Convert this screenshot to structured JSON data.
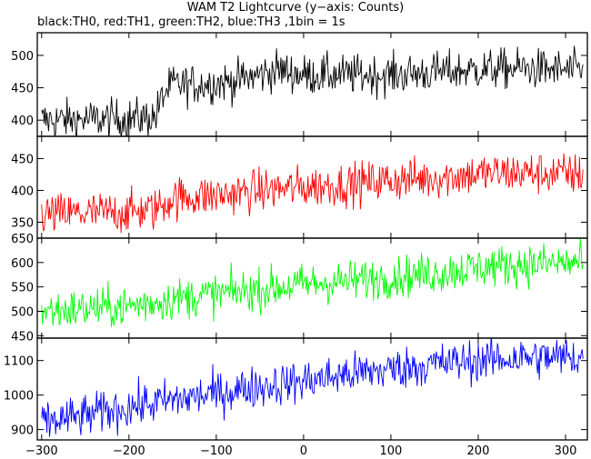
{
  "title": "WAM T2 Lightcurve (y−axis: Counts)",
  "subtitle": "black:TH0, red:TH1, green:TH2, blue:TH3 ,1bin = 1s",
  "chart_data": {
    "type": "line",
    "xlim": [
      -305,
      325
    ],
    "x_ticks": [
      -300,
      -200,
      -100,
      0,
      100,
      200,
      300
    ],
    "x_tick_labels": [
      "−300",
      "−200",
      "−100",
      "0",
      "100",
      "200",
      "300"
    ],
    "x_step": 1,
    "panels": [
      {
        "series": "TH0",
        "color": "#000000",
        "ylim": [
          375,
          535
        ],
        "y_ticks": [
          400,
          450,
          500
        ],
        "x": [
          -300,
          -200,
          -170,
          -160,
          -150,
          -120,
          -80,
          -50,
          -30,
          0,
          50,
          100,
          150,
          200,
          250,
          320
        ],
        "y": [
          400,
          402,
          405,
          440,
          455,
          455,
          460,
          470,
          478,
          470,
          470,
          470,
          474,
          478,
          480,
          476
        ],
        "noise": 28
      },
      {
        "series": "TH1",
        "color": "#ff0000",
        "ylim": [
          325,
          485
        ],
        "y_ticks": [
          350,
          400,
          450
        ],
        "x": [
          -300,
          -200,
          -170,
          -150,
          -100,
          -50,
          0,
          50,
          100,
          150,
          200,
          250,
          320
        ],
        "y": [
          362,
          366,
          370,
          388,
          392,
          400,
          405,
          410,
          416,
          420,
          426,
          428,
          425
        ],
        "noise": 30
      },
      {
        "series": "TH2",
        "color": "#00ff00",
        "ylim": [
          445,
          650
        ],
        "y_ticks": [
          450,
          500,
          550,
          600,
          650
        ],
        "x": [
          -300,
          -200,
          -150,
          -100,
          -50,
          0,
          50,
          100,
          150,
          200,
          250,
          320
        ],
        "y": [
          500,
          510,
          525,
          535,
          545,
          555,
          562,
          570,
          578,
          590,
          596,
          600
        ],
        "noise": 38
      },
      {
        "series": "TH3",
        "color": "#0000ff",
        "ylim": [
          870,
          1165
        ],
        "y_ticks": [
          900,
          1000,
          1100
        ],
        "x": [
          -300,
          -250,
          -200,
          -150,
          -100,
          -50,
          0,
          50,
          100,
          150,
          200,
          250,
          320
        ],
        "y": [
          920,
          940,
          965,
          985,
          1005,
          1025,
          1040,
          1060,
          1075,
          1090,
          1100,
          1108,
          1110
        ],
        "noise": 55
      }
    ]
  }
}
